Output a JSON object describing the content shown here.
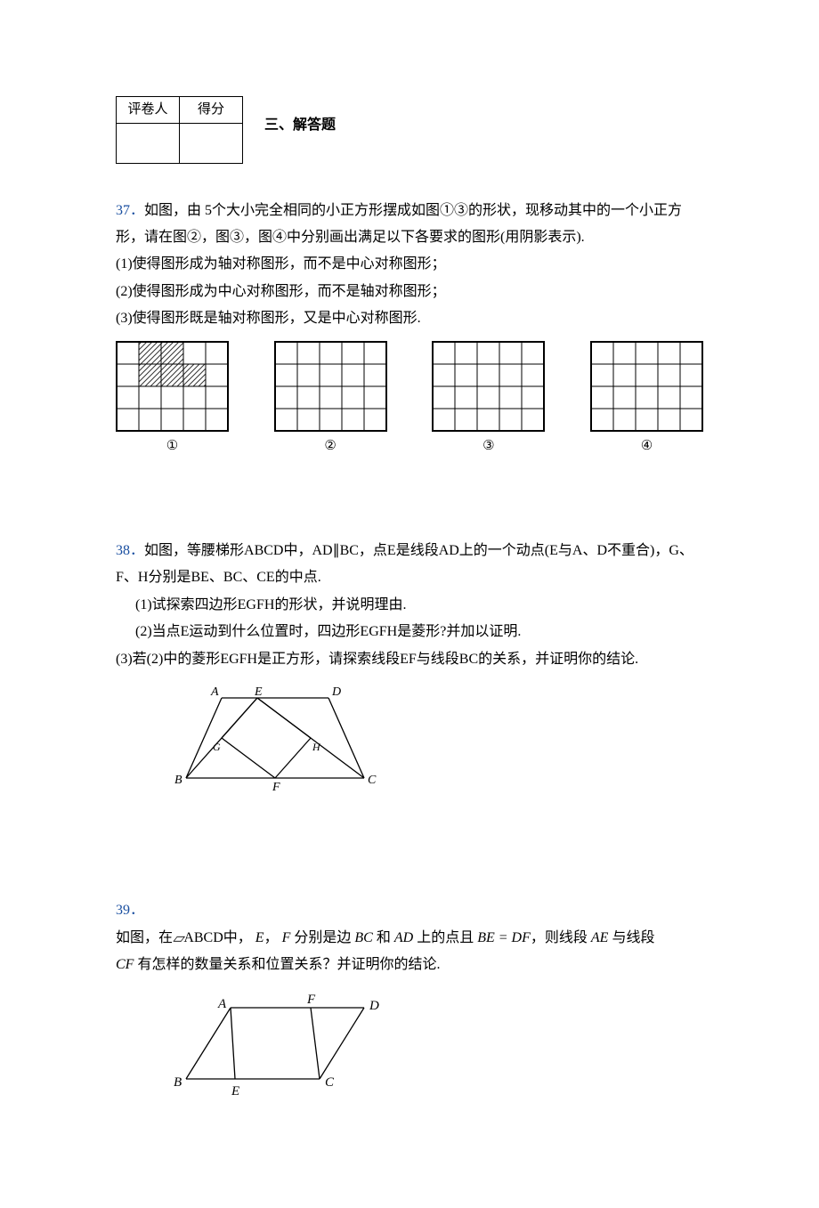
{
  "score_table": {
    "col1": "评卷人",
    "col2": "得分"
  },
  "section_title": "三、解答题",
  "q37": {
    "num": "37．",
    "lead": "如图，由 5个大小完全相同的小正方形摆成如图①③的形状，现移动其中的一个小正方形，请在图②，图③，图④中分别画出满足以下各要求的图形(用阴影表示).",
    "p1": "(1)使得图形成为轴对称图形，而不是中心对称图形；",
    "p2": "(2)使得图形成为中心对称图形，而不是轴对称图形；",
    "p3": "(3)使得图形既是轴对称图形，又是中心对称图形.",
    "labels": [
      "①",
      "②",
      "③",
      "④"
    ],
    "grid": {
      "rows": 4,
      "cols": 5,
      "cell": 25,
      "shaded_cells_1": [
        [
          0,
          1
        ],
        [
          0,
          2
        ],
        [
          1,
          1
        ],
        [
          1,
          2
        ],
        [
          1,
          3
        ]
      ],
      "border_color": "#000000",
      "grid_color": "#000000",
      "hatch_color": "#333333",
      "bg": "#ffffff"
    }
  },
  "q38": {
    "num": "38．",
    "lead": "如图，等腰梯形ABCD中，AD∥BC，点E是线段AD上的一个动点(E与A、D不重合)，G、F、H分别是BE、BC、CE的中点.",
    "p1": "(1)试探索四边形EGFH的形状，并说明理由.",
    "p2": "(2)当点E运动到什么位置时，四边形EGFH是菱形?并加以证明.",
    "p3": "(3)若(2)中的菱形EGFH是正方形，请探索线段EF与线段BC的关系，并证明你的结论.",
    "fig": {
      "A": "A",
      "B": "B",
      "C": "C",
      "D": "D",
      "E": "E",
      "F": "F",
      "G": "G",
      "H": "H",
      "line_color": "#000000",
      "label_font": 14,
      "label_font_small": 12
    }
  },
  "q39": {
    "num": "39．",
    "l1_a": "如图，在",
    "l1_b": "ABCD中，",
    "l1_c": "，",
    "l1_d": " 分别是边",
    "l1_e": " 和 ",
    "l1_f": " 上的点且",
    "l1_g": "，则线段",
    "l1_h": " 与线段",
    "E": "E",
    "F": "F",
    "BC": "BC",
    "AD": "AD",
    "BE_eq_DF": "BE = DF",
    "AE": "AE",
    "l2_a": " 有怎样的数量关系和位置关系？并证明你的结论.",
    "CF": "CF",
    "fig": {
      "A": "A",
      "B": "B",
      "C": "C",
      "D": "D",
      "E": "E",
      "F": "F",
      "line_color": "#000000",
      "label_font": 15
    }
  }
}
